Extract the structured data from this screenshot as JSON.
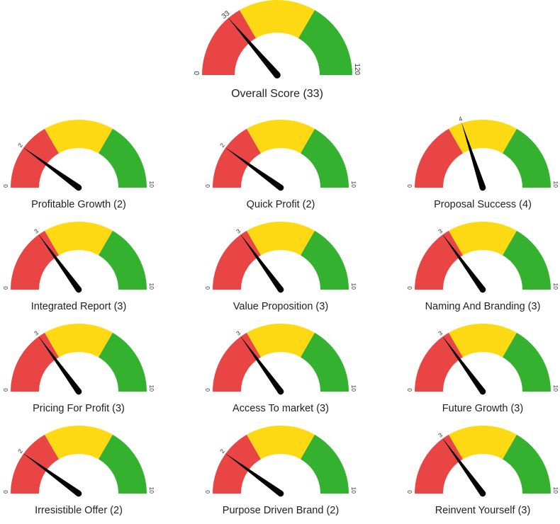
{
  "colors": {
    "red": "#e94545",
    "yellow": "#fcd912",
    "green": "#34b22f",
    "needle": "#000000",
    "text": "#222222"
  },
  "chart_data": [
    {
      "type": "gauge",
      "title": "Overall Score (33)",
      "value": 33,
      "value_label": "33",
      "min": 0,
      "max": 120,
      "min_label": "0",
      "max_label": "120",
      "bands": [
        "red",
        "yellow",
        "green"
      ]
    },
    {
      "type": "gauge",
      "title": "Profitable Growth (2)",
      "value": 2,
      "value_label": "2",
      "min": 0,
      "max": 10,
      "min_label": "0",
      "max_label": "10",
      "bands": [
        "red",
        "yellow",
        "green"
      ]
    },
    {
      "type": "gauge",
      "title": "Quick Profit (2)",
      "value": 2,
      "value_label": "2",
      "min": 0,
      "max": 10,
      "min_label": "0",
      "max_label": "10",
      "bands": [
        "red",
        "yellow",
        "green"
      ]
    },
    {
      "type": "gauge",
      "title": "Proposal Success (4)",
      "value": 4,
      "value_label": "4",
      "min": 0,
      "max": 10,
      "min_label": "0",
      "max_label": "10",
      "bands": [
        "red",
        "yellow",
        "green"
      ]
    },
    {
      "type": "gauge",
      "title": "Integrated Report (3)",
      "value": 3,
      "value_label": "3",
      "min": 0,
      "max": 10,
      "min_label": "0",
      "max_label": "10",
      "bands": [
        "red",
        "yellow",
        "green"
      ]
    },
    {
      "type": "gauge",
      "title": "Value Proposition (3)",
      "value": 3,
      "value_label": "3",
      "min": 0,
      "max": 10,
      "min_label": "0",
      "max_label": "10",
      "bands": [
        "red",
        "yellow",
        "green"
      ]
    },
    {
      "type": "gauge",
      "title": "Naming And Branding (3)",
      "value": 3,
      "value_label": "3",
      "min": 0,
      "max": 10,
      "min_label": "0",
      "max_label": "10",
      "bands": [
        "red",
        "yellow",
        "green"
      ]
    },
    {
      "type": "gauge",
      "title": "Pricing For Profit (3)",
      "value": 3,
      "value_label": "3",
      "min": 0,
      "max": 10,
      "min_label": "0",
      "max_label": "10",
      "bands": [
        "red",
        "yellow",
        "green"
      ]
    },
    {
      "type": "gauge",
      "title": "Access To market (3)",
      "value": 3,
      "value_label": "3",
      "min": 0,
      "max": 10,
      "min_label": "0",
      "max_label": "10",
      "bands": [
        "red",
        "yellow",
        "green"
      ]
    },
    {
      "type": "gauge",
      "title": "Future Growth (3)",
      "value": 3,
      "value_label": "3",
      "min": 0,
      "max": 10,
      "min_label": "0",
      "max_label": "10",
      "bands": [
        "red",
        "yellow",
        "green"
      ]
    },
    {
      "type": "gauge",
      "title": "Irresistible Offer (2)",
      "value": 2,
      "value_label": "2",
      "min": 0,
      "max": 10,
      "min_label": "0",
      "max_label": "10",
      "bands": [
        "red",
        "yellow",
        "green"
      ]
    },
    {
      "type": "gauge",
      "title": "Purpose Driven Brand (2)",
      "value": 2,
      "value_label": "2",
      "min": 0,
      "max": 10,
      "min_label": "0",
      "max_label": "10",
      "bands": [
        "red",
        "yellow",
        "green"
      ]
    },
    {
      "type": "gauge",
      "title": "Reinvent Yourself (3)",
      "value": 3,
      "value_label": "3",
      "min": 0,
      "max": 10,
      "min_label": "0",
      "max_label": "10",
      "bands": [
        "red",
        "yellow",
        "green"
      ]
    }
  ]
}
